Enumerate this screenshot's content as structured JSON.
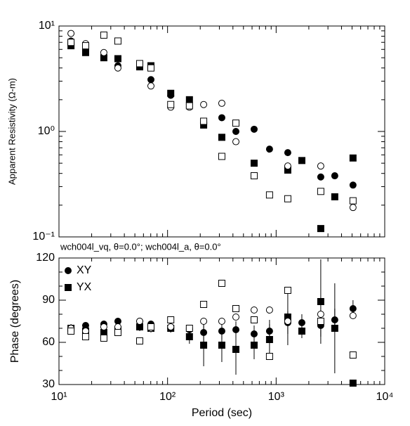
{
  "chart_data": [
    {
      "type": "scatter",
      "ylabel": "Apparent Resistivity (Ω-m)",
      "xscale": "log",
      "yscale": "log",
      "xlim": [
        10,
        10000
      ],
      "ylim": [
        0.1,
        10
      ],
      "yticks": [
        {
          "value": 0.1,
          "label": "10⁻¹"
        },
        {
          "value": 1,
          "label": "10⁰"
        },
        {
          "value": 10,
          "label": "10¹"
        }
      ],
      "x": [
        12.9,
        17.6,
        25.9,
        34.9,
        55.4,
        70.3,
        107,
        159,
        215,
        316,
        426,
        627,
        869,
        1280,
        1725,
        2576,
        3467,
        5105
      ],
      "series": [
        {
          "marker": "circle",
          "fill": "filled",
          "color": "#000000",
          "values": [
            7.2,
            6.4,
            5.2,
            4.2,
            null,
            3.1,
            2.2,
            1.8,
            null,
            1.35,
            1.0,
            1.05,
            0.68,
            0.63,
            null,
            0.37,
            0.38,
            0.31
          ]
        },
        {
          "marker": "square",
          "fill": "filled",
          "color": "#000000",
          "values": [
            6.5,
            5.6,
            5.0,
            4.9,
            4.1,
            4.2,
            2.3,
            2.0,
            1.15,
            0.88,
            null,
            0.5,
            null,
            0.43,
            0.53,
            0.12,
            0.24,
            0.56
          ]
        },
        {
          "marker": "circle",
          "fill": "open",
          "color": "#000000",
          "values": [
            8.5,
            6.8,
            5.6,
            4.0,
            null,
            2.7,
            1.7,
            1.7,
            1.8,
            1.85,
            0.8,
            null,
            null,
            0.47,
            null,
            0.47,
            null,
            0.19
          ]
        },
        {
          "marker": "square",
          "fill": "open",
          "color": "#000000",
          "values": [
            7.0,
            6.5,
            8.2,
            7.2,
            4.4,
            4.0,
            1.8,
            1.75,
            1.25,
            0.58,
            1.2,
            0.38,
            0.25,
            0.23,
            null,
            0.27,
            null,
            0.22
          ]
        }
      ]
    },
    {
      "type": "scatter",
      "title": "wch004l_vq, θ=0.0°; wch004l_a, θ=0.0°",
      "xlabel": "Period (sec)",
      "ylabel": "Phase (degrees)",
      "xscale": "log",
      "xlim": [
        10,
        10000
      ],
      "ylim": [
        30,
        120
      ],
      "yticks": [
        30,
        60,
        90,
        120
      ],
      "xticks": [
        {
          "value": 10,
          "label": "10¹"
        },
        {
          "value": 100,
          "label": "10²"
        },
        {
          "value": 1000,
          "label": "10³"
        },
        {
          "value": 10000,
          "label": "10⁴"
        }
      ],
      "legend": "upper left",
      "x": [
        12.9,
        17.6,
        25.9,
        34.9,
        55.4,
        70.3,
        107,
        159,
        215,
        316,
        426,
        627,
        869,
        1280,
        1725,
        2576,
        3467,
        5105
      ],
      "series": [
        {
          "name": "XY",
          "marker": "circle",
          "fill": "filled",
          "color": "#000000",
          "values": [
            70,
            72,
            73,
            75,
            75,
            73,
            70,
            69,
            67,
            68,
            69,
            66,
            68,
            74,
            74,
            72,
            76,
            84
          ],
          "errors": [
            2,
            2,
            2,
            2,
            2,
            2,
            3,
            3,
            8,
            6,
            6,
            6,
            5,
            8,
            6,
            8,
            8,
            6
          ]
        },
        {
          "name": "YX",
          "marker": "square",
          "fill": "filled",
          "color": "#000000",
          "values": [
            70,
            68,
            67,
            69,
            71,
            70,
            70,
            64,
            58,
            58,
            55,
            58,
            62,
            78,
            68,
            89,
            70,
            31
          ],
          "errors": [
            3,
            3,
            3,
            3,
            3,
            3,
            3,
            5,
            15,
            12,
            18,
            10,
            14,
            20,
            5,
            30,
            32,
            2
          ]
        },
        {
          "marker": "circle",
          "fill": "open",
          "color": "#000000",
          "values": [
            70,
            68,
            71,
            71,
            75,
            70,
            71,
            70,
            75,
            75,
            78,
            83,
            83,
            75,
            null,
            80,
            null,
            79
          ]
        },
        {
          "marker": "square",
          "fill": "open",
          "color": "#000000",
          "values": [
            68,
            64,
            63,
            67,
            61,
            71,
            76,
            70,
            87,
            102,
            84,
            76,
            50,
            97,
            null,
            75,
            null,
            51
          ]
        }
      ]
    }
  ]
}
